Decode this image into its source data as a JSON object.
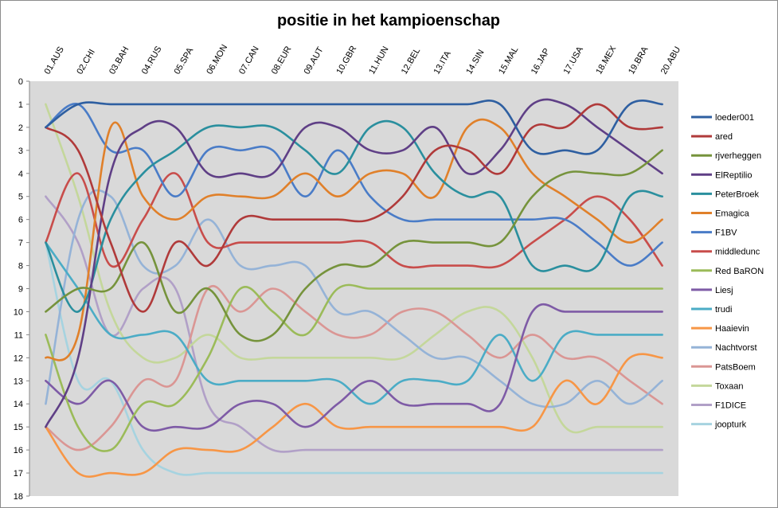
{
  "chart_data": {
    "type": "line",
    "title": "positie in het kampioenschap",
    "xlabel": "",
    "ylabel": "",
    "categories": [
      "01.AUS",
      "02.CHI",
      "03.BAH",
      "04.RUS",
      "05.SPA",
      "06.MON",
      "07.CAN",
      "08.EUR",
      "09.AUT",
      "10.GBR",
      "11.HUN",
      "12.BEL",
      "13.ITA",
      "14.SIN",
      "15.MAL",
      "16.JAP",
      "17.USA",
      "18.MEX",
      "19.BRA",
      "20.ABU"
    ],
    "ylim": [
      0,
      18
    ],
    "y_inverted": true,
    "y_ticks": [
      "0",
      "1",
      "2",
      "3",
      "4",
      "5",
      "6",
      "7",
      "8",
      "9",
      "10",
      "11",
      "12",
      "13",
      "14",
      "15",
      "16",
      "17",
      "18"
    ],
    "plot_background": "#d9d9d9",
    "grid": false,
    "legend_position": "right",
    "series": [
      {
        "name": "loeder001",
        "color": "#2e5fa1",
        "values": [
          2,
          1,
          1,
          1,
          1,
          1,
          1,
          1,
          1,
          1,
          1,
          1,
          1,
          1,
          1,
          3,
          3,
          3,
          1,
          1
        ]
      },
      {
        "name": "ared",
        "color": "#b03a3a",
        "values": [
          2,
          3,
          7,
          10,
          7,
          8,
          6,
          6,
          6,
          6,
          6,
          5,
          3,
          3,
          4,
          2,
          2,
          1,
          2,
          2
        ]
      },
      {
        "name": "rjverheggen",
        "color": "#76933c",
        "values": [
          10,
          9,
          9,
          7,
          10,
          9,
          11,
          11,
          9,
          8,
          8,
          7,
          7,
          7,
          7,
          5,
          4,
          4,
          4,
          3
        ]
      },
      {
        "name": "ElReptilio",
        "color": "#5f3f86",
        "values": [
          15,
          12,
          4,
          2,
          2,
          4,
          4,
          4,
          2,
          2,
          3,
          3,
          2,
          4,
          3,
          1,
          1,
          2,
          3,
          4
        ]
      },
      {
        "name": "PeterBroek",
        "color": "#2a8f9e",
        "values": [
          7,
          10,
          6,
          4,
          3,
          2,
          2,
          2,
          3,
          4,
          2,
          2,
          4,
          5,
          5,
          8,
          8,
          8,
          5,
          5
        ]
      },
      {
        "name": "Emagica",
        "color": "#e0802a",
        "values": [
          12,
          11,
          2,
          5,
          6,
          5,
          5,
          5,
          4,
          5,
          4,
          4,
          5,
          2,
          2,
          4,
          5,
          6,
          7,
          6
        ]
      },
      {
        "name": "F1BV",
        "color": "#4a7cc7",
        "values": [
          2,
          1,
          3,
          3,
          5,
          3,
          3,
          3,
          5,
          3,
          5,
          6,
          6,
          6,
          6,
          6,
          6,
          7,
          8,
          7
        ]
      },
      {
        "name": "middledunc",
        "color": "#c84d4b",
        "values": [
          7,
          4,
          8,
          6,
          4,
          7,
          7,
          7,
          7,
          7,
          7,
          8,
          8,
          8,
          8,
          7,
          6,
          5,
          6,
          8
        ]
      },
      {
        "name": "Red BaRON",
        "color": "#9bbb59",
        "values": [
          11,
          15,
          16,
          14,
          14,
          12,
          9,
          10,
          11,
          9,
          9,
          9,
          9,
          9,
          9,
          9,
          9,
          9,
          9,
          9
        ]
      },
      {
        "name": "Liesj",
        "color": "#7e5ba6",
        "values": [
          13,
          14,
          13,
          15,
          15,
          15,
          14,
          14,
          15,
          14,
          13,
          14,
          14,
          14,
          14,
          10,
          10,
          10,
          10,
          10
        ]
      },
      {
        "name": "trudi",
        "color": "#4bacc6",
        "values": [
          7,
          9,
          11,
          11,
          11,
          13,
          13,
          13,
          13,
          13,
          14,
          13,
          13,
          13,
          11,
          13,
          11,
          11,
          11,
          11
        ]
      },
      {
        "name": "Haaievin",
        "color": "#f79646",
        "values": [
          15,
          17,
          17,
          17,
          16,
          16,
          16,
          15,
          14,
          15,
          15,
          15,
          15,
          15,
          15,
          15,
          13,
          14,
          12,
          12
        ]
      },
      {
        "name": "Nachtvorst",
        "color": "#95b3d7",
        "values": [
          14,
          6,
          5,
          8,
          8,
          6,
          8,
          8,
          8,
          10,
          10,
          11,
          12,
          12,
          13,
          14,
          14,
          13,
          14,
          13
        ]
      },
      {
        "name": "PatsBoem",
        "color": "#da9694",
        "values": [
          15,
          16,
          15,
          13,
          13,
          9,
          10,
          9,
          10,
          11,
          11,
          10,
          10,
          11,
          12,
          11,
          12,
          12,
          13,
          14
        ]
      },
      {
        "name": "Toxaan",
        "color": "#c4d79b",
        "values": [
          1,
          5,
          10,
          12,
          12,
          11,
          12,
          12,
          12,
          12,
          12,
          12,
          11,
          10,
          10,
          12,
          15,
          15,
          15,
          15
        ]
      },
      {
        "name": "F1DICE",
        "color": "#b1a0c7",
        "values": [
          5,
          7,
          11,
          9,
          9,
          14,
          15,
          16,
          16,
          16,
          16,
          16,
          16,
          16,
          16,
          16,
          16,
          16,
          16,
          16
        ]
      },
      {
        "name": "joopturk",
        "color": "#a6d3e0",
        "values": [
          7,
          13,
          13,
          16,
          17,
          17,
          17,
          17,
          17,
          17,
          17,
          17,
          17,
          17,
          17,
          17,
          17,
          17,
          17,
          17
        ]
      }
    ]
  }
}
